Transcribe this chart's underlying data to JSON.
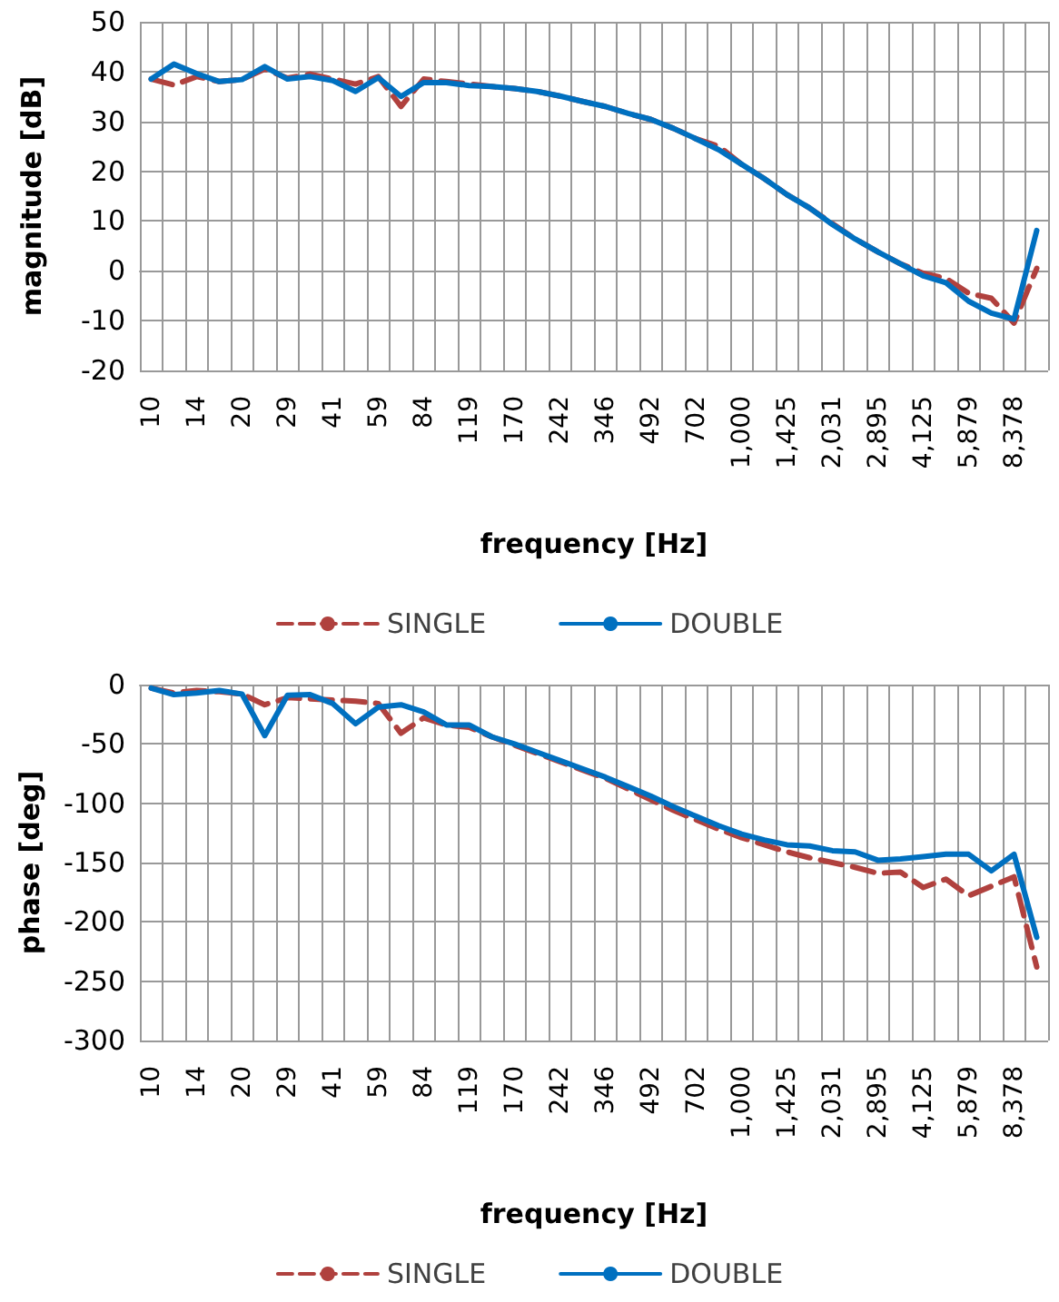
{
  "chart_data": [
    {
      "type": "line",
      "xlabel": "frequency [Hz]",
      "ylabel": "magnitude [dB]",
      "categories": [
        "10",
        null,
        "14",
        null,
        "20",
        null,
        "29",
        null,
        "41",
        null,
        "59",
        null,
        "84",
        null,
        "119",
        null,
        "170",
        null,
        "242",
        null,
        "346",
        null,
        "492",
        null,
        "702",
        null,
        "1,000",
        null,
        "1,425",
        null,
        "2,031",
        null,
        "2,895",
        null,
        "4,125",
        null,
        "5,879",
        null,
        "8,378",
        null
      ],
      "series": [
        {
          "name": "SINGLE",
          "color": "#b0413e",
          "line_style": "dashed",
          "values": [
            38.5,
            37.3,
            39,
            38,
            38.4,
            40.5,
            38.7,
            39.5,
            38.5,
            37.5,
            39,
            33,
            38.5,
            38,
            37.5,
            37,
            36.6,
            36,
            35.1,
            34,
            33,
            31.6,
            30.4,
            28.6,
            26.5,
            25,
            21.4,
            18.5,
            15.3,
            12.6,
            9.5,
            6.4,
            3.8,
            1.4,
            -0.5,
            -1.5,
            -4.5,
            -5.5,
            -10.5,
            0.5
          ]
        },
        {
          "name": "DOUBLE",
          "color": "#0070c0",
          "line_style": "solid",
          "values": [
            38.5,
            41.5,
            39.6,
            38,
            38.4,
            41,
            38.5,
            39,
            38.2,
            36,
            38.8,
            35,
            37.8,
            37.8,
            37.2,
            37,
            36.6,
            36,
            35.1,
            34,
            33,
            31.6,
            30.4,
            28.6,
            26.5,
            24.3,
            21.4,
            18.5,
            15.3,
            12.6,
            9.3,
            6.4,
            3.8,
            1.4,
            -1,
            -2.4,
            -6.1,
            -8.5,
            -9.7,
            8.1
          ]
        }
      ],
      "ylim": [
        -20,
        50
      ],
      "yticks": [
        -20,
        -10,
        0,
        10,
        20,
        30,
        40,
        50
      ],
      "grid": true,
      "legend": "bottom",
      "marker": "none"
    },
    {
      "type": "line",
      "xlabel": "frequency [Hz]",
      "ylabel": "phase [deg]",
      "categories": [
        "10",
        null,
        "14",
        null,
        "20",
        null,
        "29",
        null,
        "41",
        null,
        "59",
        null,
        "84",
        null,
        "119",
        null,
        "170",
        null,
        "242",
        null,
        "346",
        null,
        "492",
        null,
        "702",
        null,
        "1,000",
        null,
        "1,425",
        null,
        "2,031",
        null,
        "2,895",
        null,
        "4,125",
        null,
        "5,879",
        null,
        "8,378",
        null
      ],
      "series": [
        {
          "name": "SINGLE",
          "color": "#b0413e",
          "line_style": "dashed",
          "values": [
            -3,
            -7,
            -5,
            -6,
            -8,
            -17,
            -11,
            -12,
            -13,
            -14,
            -16,
            -41,
            -28,
            -34,
            -36,
            -44,
            -51,
            -58,
            -65,
            -72,
            -79,
            -88,
            -97,
            -106,
            -114,
            -122,
            -129,
            -135,
            -141,
            -146,
            -150,
            -154,
            -159,
            -158,
            -171,
            -164,
            -178,
            -170,
            -162,
            -238
          ]
        },
        {
          "name": "DOUBLE",
          "color": "#0070c0",
          "line_style": "solid",
          "values": [
            -3,
            -8.5,
            -7,
            -5,
            -8,
            -43,
            -9,
            -8.5,
            -16,
            -33,
            -19,
            -17,
            -23,
            -34,
            -34,
            -44,
            -50,
            -57,
            -64,
            -71,
            -78,
            -86,
            -94,
            -103,
            -111,
            -119,
            -126,
            -131,
            -135,
            -136,
            -140,
            -141,
            -148,
            -147,
            -145,
            -143,
            -143,
            -157,
            -143,
            -213
          ]
        }
      ],
      "ylim": [
        -300,
        0
      ],
      "yticks": [
        -300,
        -250,
        -200,
        -150,
        -100,
        -50,
        0
      ],
      "grid": true,
      "legend": "bottom",
      "marker": "none"
    }
  ]
}
